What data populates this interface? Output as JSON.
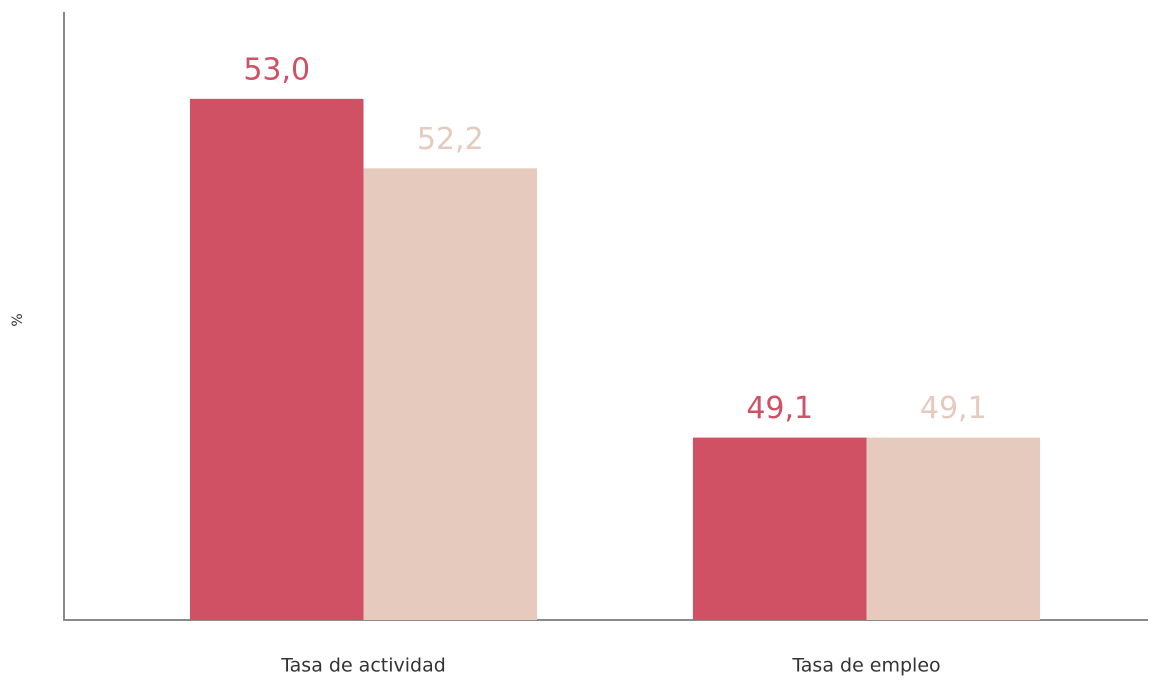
{
  "chart_data": {
    "type": "bar",
    "y_label": "%",
    "categories": [
      "Tasa de actividad",
      "Tasa de empleo"
    ],
    "series": [
      {
        "color": "#d05064",
        "values": [
          53.0,
          49.1
        ],
        "value_labels": [
          "53,0",
          "49,1"
        ]
      },
      {
        "color": "#e6cabe",
        "values": [
          52.2,
          49.1
        ],
        "value_labels": [
          "52,2",
          "49,1"
        ]
      }
    ],
    "ylim": [
      47,
      54
    ]
  }
}
